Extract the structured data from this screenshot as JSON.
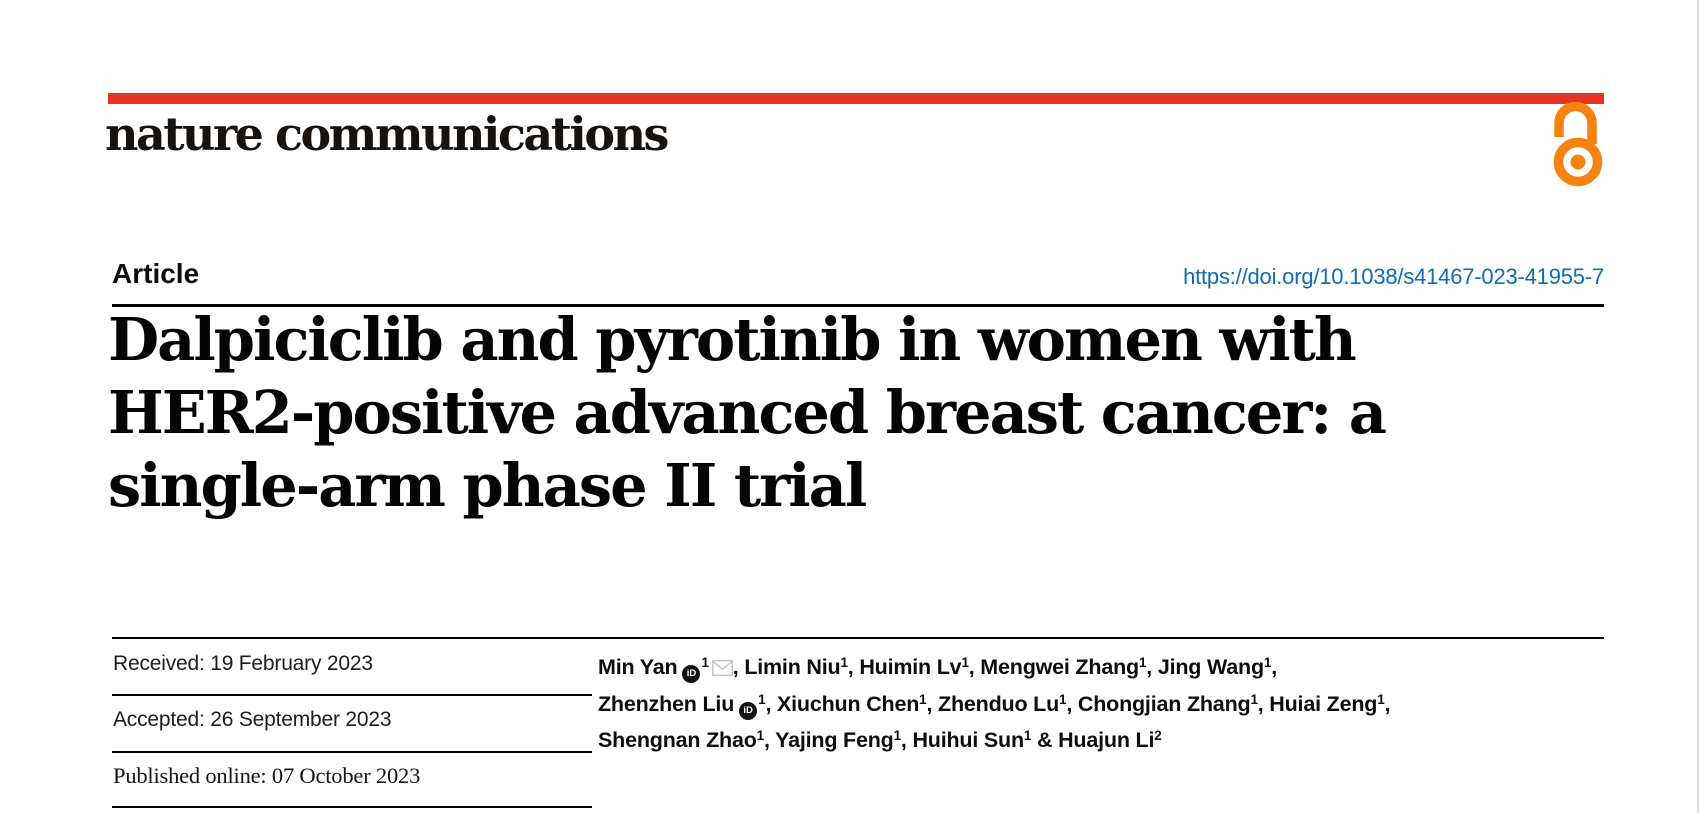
{
  "brand": {
    "wordmark": "nature communications",
    "bar_color": "#e63323",
    "open_access_color": "#f68212"
  },
  "article": {
    "type_label": "Article",
    "doi": "https://doi.org/10.1038/s41467-023-41955-7",
    "doi_color": "#0d6cb5"
  },
  "title": {
    "lines": [
      "Dalpiciclib and pyrotinib in women with",
      "HER2-positive advanced breast cancer: a",
      "single-arm phase II trial"
    ]
  },
  "history": {
    "received": "Received: 19 February 2023",
    "accepted": "Accepted: 26 September 2023",
    "published": "Published online: 07 October 2023"
  },
  "authors": {
    "orcid_glyph": "iD",
    "lines": [
      [
        {
          "name": "Min Yan",
          "orcid": true,
          "sup": "1",
          "email": true,
          "sep": ", "
        },
        {
          "name": "Limin Niu",
          "sup": "1",
          "sep": ", "
        },
        {
          "name": "Huimin Lv",
          "sup": "1",
          "sep": ", "
        },
        {
          "name": "Mengwei Zhang",
          "sup": "1",
          "sep": ", "
        },
        {
          "name": "Jing Wang",
          "sup": "1",
          "sep": ","
        }
      ],
      [
        {
          "name": "Zhenzhen Liu",
          "orcid": true,
          "sup": "1",
          "sep": ", "
        },
        {
          "name": "Xiuchun Chen",
          "sup": "1",
          "sep": ", "
        },
        {
          "name": "Zhenduo Lu",
          "sup": "1",
          "sep": ", "
        },
        {
          "name": "Chongjian Zhang",
          "sup": "1",
          "sep": ", "
        },
        {
          "name": "Huiai Zeng",
          "sup": "1",
          "sep": ","
        }
      ],
      [
        {
          "name": "Shengnan Zhao",
          "sup": "1",
          "sep": ", "
        },
        {
          "name": "Yajing Feng",
          "sup": "1",
          "sep": ", "
        },
        {
          "name": "Huihui Sun",
          "sup": "1",
          "sep": " & "
        },
        {
          "name": "Huajun Li",
          "sup": "2",
          "sep": ""
        }
      ]
    ]
  }
}
